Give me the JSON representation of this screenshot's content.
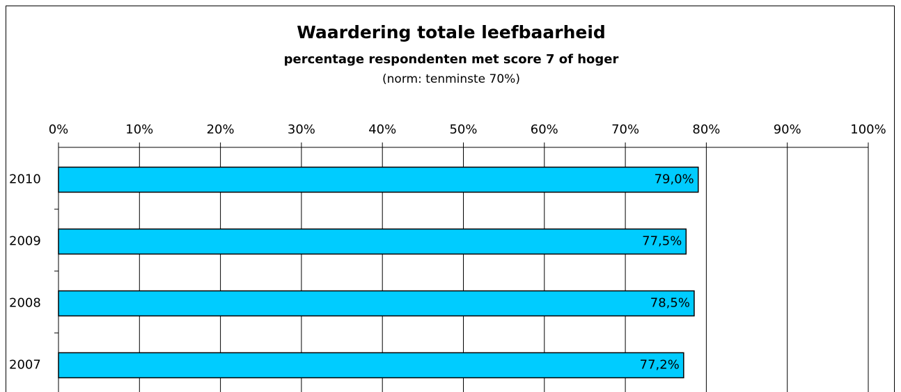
{
  "chart_data": {
    "type": "barh",
    "title": "Waardering totale leefbaarheid",
    "subtitle": "percentage respondenten met score 7 of hoger",
    "annotation": "(norm: tenminste 70%)",
    "categories": [
      "2010",
      "2009",
      "2008",
      "2007"
    ],
    "values": [
      79.0,
      77.5,
      78.5,
      77.2
    ],
    "value_labels": [
      "79,0%",
      "77,5%",
      "78,5%",
      "77,2%"
    ],
    "color": "#00ccff",
    "xlim": [
      0,
      100
    ],
    "xticks": [
      {
        "value": 0,
        "label": "0%"
      },
      {
        "value": 10,
        "label": "10%"
      },
      {
        "value": 20,
        "label": "20%"
      },
      {
        "value": 30,
        "label": "30%"
      },
      {
        "value": 40,
        "label": "40%"
      },
      {
        "value": 50,
        "label": "50%"
      },
      {
        "value": 60,
        "label": "60%"
      },
      {
        "value": 70,
        "label": "70%"
      },
      {
        "value": 80,
        "label": "80%"
      },
      {
        "value": 90,
        "label": "90%"
      },
      {
        "value": 100,
        "label": "100%"
      }
    ],
    "grid": true
  }
}
